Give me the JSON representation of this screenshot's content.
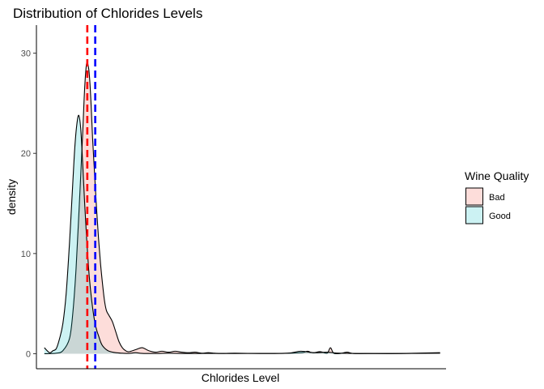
{
  "chart_data": {
    "type": "area",
    "title": "Distribution of Chlorides Levels",
    "xlabel": "Chlorides Level",
    "ylabel": "density",
    "xlim": [
      0.0,
      0.62
    ],
    "ylim": [
      -1.5,
      32.8
    ],
    "yticks": [
      0,
      10,
      20,
      30
    ],
    "xticks_shown": false,
    "grid": false,
    "legend": {
      "title": "Wine Quality",
      "placement": "right",
      "entries": [
        "Bad",
        "Good"
      ]
    },
    "series": [
      {
        "name": "Bad",
        "fill": "#f8766d",
        "fill_opacity": 0.25,
        "x": [
          0.012,
          0.03,
          0.04,
          0.05,
          0.055,
          0.06,
          0.065,
          0.07,
          0.073,
          0.076,
          0.079,
          0.081,
          0.083,
          0.085,
          0.088,
          0.091,
          0.094,
          0.097,
          0.1,
          0.103,
          0.106,
          0.11,
          0.115,
          0.12,
          0.125,
          0.13,
          0.135,
          0.14,
          0.15,
          0.16,
          0.17,
          0.18,
          0.19,
          0.2,
          0.21,
          0.22,
          0.23,
          0.24,
          0.25,
          0.26,
          0.27,
          0.28,
          0.3,
          0.33,
          0.36,
          0.4,
          0.41,
          0.415,
          0.42,
          0.43,
          0.44,
          0.445,
          0.45,
          0.46,
          0.47,
          0.48,
          0.5,
          0.55,
          0.611
        ],
        "values": [
          0.0,
          0.05,
          0.3,
          1.5,
          4.0,
          8.5,
          15.0,
          22.0,
          26.5,
          29.0,
          28.5,
          27.0,
          24.5,
          21.5,
          18.0,
          14.5,
          11.5,
          9.0,
          7.0,
          5.3,
          4.3,
          3.8,
          3.2,
          2.2,
          1.2,
          0.6,
          0.3,
          0.2,
          0.4,
          0.6,
          0.3,
          0.15,
          0.25,
          0.15,
          0.25,
          0.15,
          0.1,
          0.15,
          0.05,
          0.1,
          0.05,
          0.03,
          0.05,
          0.03,
          0.02,
          0.1,
          0.25,
          0.15,
          0.1,
          0.2,
          0.05,
          0.6,
          0.05,
          0.02,
          0.15,
          0.02,
          0.02,
          0.02,
          0.1
        ]
      },
      {
        "name": "Good",
        "fill": "#00bfc4",
        "fill_opacity": 0.2,
        "x": [
          0.012,
          0.02,
          0.025,
          0.03,
          0.035,
          0.04,
          0.045,
          0.05,
          0.055,
          0.058,
          0.061,
          0.064,
          0.067,
          0.07,
          0.073,
          0.076,
          0.079,
          0.082,
          0.085,
          0.088,
          0.091,
          0.094,
          0.097,
          0.1,
          0.105,
          0.11,
          0.12,
          0.13,
          0.14,
          0.15,
          0.16,
          0.18,
          0.2,
          0.23,
          0.26,
          0.3,
          0.34,
          0.38,
          0.4,
          0.42,
          0.44,
          0.46,
          0.5,
          0.55,
          0.611
        ],
        "values": [
          0.6,
          0.1,
          0.3,
          0.5,
          1.5,
          3.0,
          6.0,
          11.0,
          17.0,
          20.5,
          22.8,
          23.8,
          22.5,
          19.0,
          15.0,
          11.5,
          8.5,
          6.3,
          4.6,
          3.3,
          2.4,
          1.8,
          1.2,
          0.8,
          0.45,
          0.25,
          0.1,
          0.05,
          0.03,
          0.1,
          0.03,
          0.02,
          0.05,
          0.02,
          0.03,
          0.02,
          0.03,
          0.05,
          0.25,
          0.1,
          0.15,
          0.05,
          0.02,
          0.02,
          0.05
        ]
      }
    ],
    "reference_lines": [
      {
        "x": 0.077,
        "color": "#ff0000",
        "style": "dashed"
      },
      {
        "x": 0.089,
        "color": "#0000ff",
        "style": "dashed"
      }
    ]
  }
}
